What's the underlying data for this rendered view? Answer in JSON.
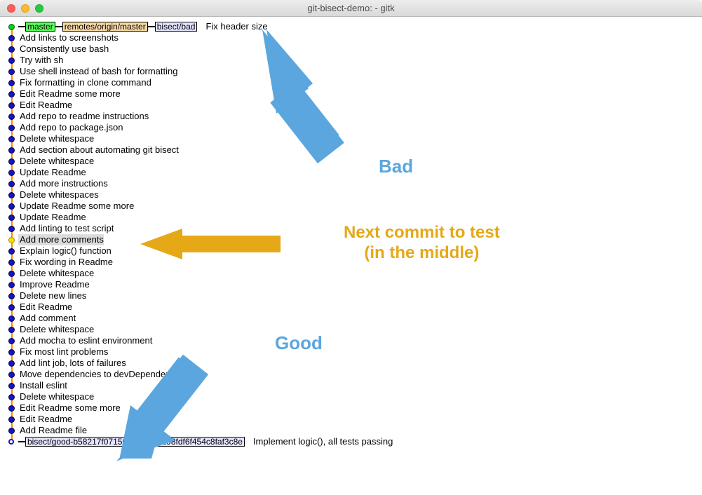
{
  "window": {
    "title": "git-bisect-demo:  - gitk"
  },
  "refs": {
    "master": "master",
    "remote": "remotes/origin/master",
    "bisect_bad": "bisect/bad",
    "bisect_good": "bisect/good-b58217f071509f8da9ac298fdf6f454c8faf3c8e"
  },
  "head_commit_msg": "Fix header size",
  "tail_commit_msg": "Implement logic(), all tests passing",
  "commits": [
    {
      "msg": "Add links to screenshots",
      "dot": "blue"
    },
    {
      "msg": "Consistently use bash",
      "dot": "blue"
    },
    {
      "msg": "Try with sh",
      "dot": "blue"
    },
    {
      "msg": "Use shell instead of bash for formatting",
      "dot": "blue"
    },
    {
      "msg": "Fix formatting in clone command",
      "dot": "blue"
    },
    {
      "msg": "Edit Readme some more",
      "dot": "blue"
    },
    {
      "msg": "Edit Readme",
      "dot": "blue"
    },
    {
      "msg": "Add repo to readme instructions",
      "dot": "blue"
    },
    {
      "msg": "Add repo to package.json",
      "dot": "blue"
    },
    {
      "msg": "Delete whitespace",
      "dot": "blue"
    },
    {
      "msg": "Add section about automating git bisect",
      "dot": "blue"
    },
    {
      "msg": "Delete whitespace",
      "dot": "blue"
    },
    {
      "msg": "Update Readme",
      "dot": "blue"
    },
    {
      "msg": "Add more instructions",
      "dot": "blue"
    },
    {
      "msg": "Delete whitespaces",
      "dot": "blue"
    },
    {
      "msg": "Update Readme some more",
      "dot": "blue"
    },
    {
      "msg": "Update Readme",
      "dot": "blue"
    },
    {
      "msg": "Add linting to test script",
      "dot": "blue"
    },
    {
      "msg": "Add more comments",
      "dot": "yellow",
      "selected": true
    },
    {
      "msg": "Explain logic() function",
      "dot": "blue"
    },
    {
      "msg": "Fix wording in Readme",
      "dot": "blue"
    },
    {
      "msg": "Delete whitespace",
      "dot": "blue"
    },
    {
      "msg": "Improve Readme",
      "dot": "blue"
    },
    {
      "msg": "Delete new lines",
      "dot": "blue"
    },
    {
      "msg": "Edit Readme",
      "dot": "blue"
    },
    {
      "msg": "Add comment",
      "dot": "blue"
    },
    {
      "msg": "Delete whitespace",
      "dot": "blue"
    },
    {
      "msg": "Add mocha to eslint environment",
      "dot": "blue"
    },
    {
      "msg": "Fix most lint problems",
      "dot": "blue"
    },
    {
      "msg": "Add lint job, lots of failures",
      "dot": "blue"
    },
    {
      "msg": "Move dependencies to devDependencies",
      "dot": "blue"
    },
    {
      "msg": "Install eslint",
      "dot": "blue"
    },
    {
      "msg": "Delete whitespace",
      "dot": "blue"
    },
    {
      "msg": "Edit Readme some more",
      "dot": "blue"
    },
    {
      "msg": "Edit Readme",
      "dot": "blue"
    },
    {
      "msg": "Add Readme file",
      "dot": "blue"
    }
  ],
  "annotations": {
    "bad": "Bad",
    "mid_line1": "Next commit to test",
    "mid_line2": "(in the middle)",
    "good": "Good"
  },
  "colors": {
    "arrow_blue": "#5ba6de",
    "arrow_yellow": "#e6a817"
  }
}
